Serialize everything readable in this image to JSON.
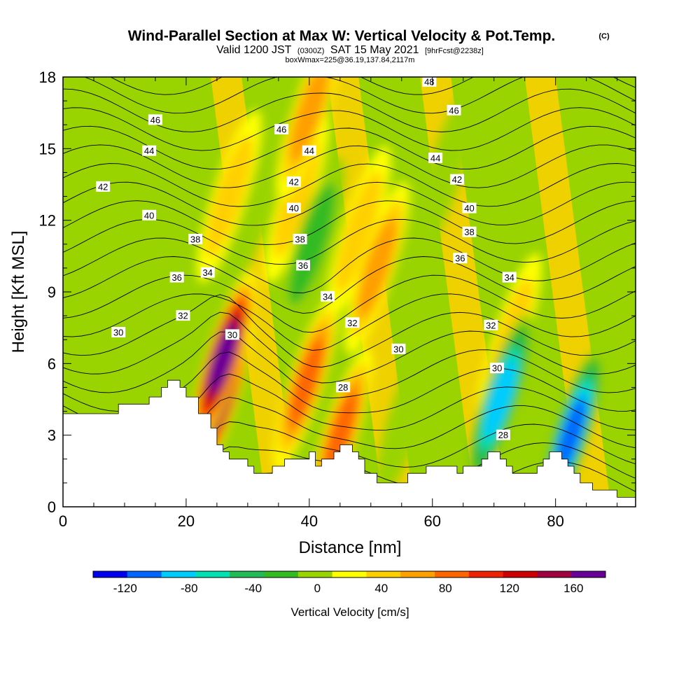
{
  "chart_data": {
    "type": "heatmap",
    "title": "Wind-Parallel Section at Max W: Vertical Velocity & Pot.Temp.",
    "title_mark": "(C)",
    "subtitle": {
      "valid": "Valid 1200 JST",
      "utc": "(0300Z)",
      "date": "SAT 15 May 2021",
      "fcst": "[9hrFcst@2238z]",
      "box": "boxWmax=225@36.19,137.84,2117m"
    },
    "xlabel": "Distance [nm]",
    "ylabel": "Height [Kft MSL]",
    "xlim": [
      0,
      93
    ],
    "ylim": [
      0,
      18
    ],
    "xticks": [
      0,
      20,
      40,
      60,
      80
    ],
    "yticks": [
      0,
      3,
      6,
      9,
      12,
      15,
      18
    ],
    "grid": false,
    "colorbar": {
      "label": "Vertical Velocity [cm/s]",
      "range": [
        -140,
        180
      ],
      "step": 20,
      "tick_values": [
        -120,
        -80,
        -40,
        0,
        40,
        80,
        120,
        160
      ],
      "tick_labels": [
        "-120",
        "-80",
        "-40",
        "0",
        "40",
        "80",
        "120",
        "160"
      ],
      "colors": [
        "#0000ee",
        "#0066ff",
        "#00ccff",
        "#00e0b0",
        "#22bb55",
        "#33bb22",
        "#99d400",
        "#ffff00",
        "#ffd000",
        "#ff9f00",
        "#ff6600",
        "#ee2200",
        "#cc0000",
        "#a00040",
        "#660099"
      ]
    },
    "velocity_features": [
      {
        "x": 26,
        "y": 6.2,
        "w": 160
      },
      {
        "x": 25.5,
        "y": 4.5,
        "w": 130
      },
      {
        "x": 39.5,
        "y": 5.2,
        "w": 80
      },
      {
        "x": 45,
        "y": 3.0,
        "w": 70
      },
      {
        "x": 48,
        "y": 11.5,
        "w": 40
      },
      {
        "x": 51,
        "y": 10.0,
        "w": 60
      },
      {
        "x": 40,
        "y": 16.5,
        "w": 60
      },
      {
        "x": 38,
        "y": 13.0,
        "w": 40
      },
      {
        "x": 72.5,
        "y": 7.0,
        "w": 40
      },
      {
        "x": 27,
        "y": 13.0,
        "w": 40
      },
      {
        "x": 40.5,
        "y": 11.0,
        "w": -40
      },
      {
        "x": 71,
        "y": 4.5,
        "w": -100
      },
      {
        "x": 82.5,
        "y": 3.0,
        "w": -120
      },
      {
        "x": 31,
        "y": 12.5,
        "w": -20
      },
      {
        "x": 62,
        "y": 14.0,
        "w": -10
      },
      {
        "x": 12,
        "y": 14.0,
        "w": -10
      },
      {
        "x": 56,
        "y": 4.0,
        "w": -20
      }
    ],
    "terrain": [
      [
        0,
        3.9
      ],
      [
        9,
        3.9
      ],
      [
        9,
        4.3
      ],
      [
        14,
        4.3
      ],
      [
        14,
        4.6
      ],
      [
        16,
        4.6
      ],
      [
        16,
        5.0
      ],
      [
        17,
        5.0
      ],
      [
        17,
        5.3
      ],
      [
        19,
        5.3
      ],
      [
        19,
        5.0
      ],
      [
        20,
        5.0
      ],
      [
        20,
        4.6
      ],
      [
        22,
        4.6
      ],
      [
        22,
        3.9
      ],
      [
        24,
        3.9
      ],
      [
        24,
        3.3
      ],
      [
        25,
        3.3
      ],
      [
        25,
        2.6
      ],
      [
        26,
        2.6
      ],
      [
        26,
        2.3
      ],
      [
        27,
        2.3
      ],
      [
        27,
        2.0
      ],
      [
        30,
        2.0
      ],
      [
        30,
        1.7
      ],
      [
        31,
        1.7
      ],
      [
        31,
        1.4
      ],
      [
        34,
        1.4
      ],
      [
        34,
        1.7
      ],
      [
        36,
        1.7
      ],
      [
        36,
        2.0
      ],
      [
        40,
        2.0
      ],
      [
        40,
        2.3
      ],
      [
        41,
        2.3
      ],
      [
        41,
        1.7
      ],
      [
        42,
        1.7
      ],
      [
        42,
        2.0
      ],
      [
        44,
        2.0
      ],
      [
        44,
        2.3
      ],
      [
        45,
        2.3
      ],
      [
        45,
        2.6
      ],
      [
        47,
        2.6
      ],
      [
        47,
        2.3
      ],
      [
        48,
        2.3
      ],
      [
        48,
        2.0
      ],
      [
        49,
        2.0
      ],
      [
        49,
        1.4
      ],
      [
        51,
        1.4
      ],
      [
        51,
        1.0
      ],
      [
        56,
        1.0
      ],
      [
        56,
        1.4
      ],
      [
        59,
        1.4
      ],
      [
        59,
        1.7
      ],
      [
        64,
        1.7
      ],
      [
        64,
        1.4
      ],
      [
        65,
        1.4
      ],
      [
        65,
        1.7
      ],
      [
        68,
        1.7
      ],
      [
        68,
        2.0
      ],
      [
        69,
        2.0
      ],
      [
        69,
        2.3
      ],
      [
        71,
        2.3
      ],
      [
        71,
        2.0
      ],
      [
        72,
        2.0
      ],
      [
        72,
        1.7
      ],
      [
        73,
        1.7
      ],
      [
        73,
        1.4
      ],
      [
        77,
        1.4
      ],
      [
        77,
        1.7
      ],
      [
        78,
        1.7
      ],
      [
        78,
        2.0
      ],
      [
        79,
        2.0
      ],
      [
        79,
        2.3
      ],
      [
        81,
        2.3
      ],
      [
        81,
        2.0
      ],
      [
        82,
        2.0
      ],
      [
        82,
        1.7
      ],
      [
        83,
        1.7
      ],
      [
        83,
        1.4
      ],
      [
        84,
        1.4
      ],
      [
        84,
        1.0
      ],
      [
        86,
        1.0
      ],
      [
        86,
        0.7
      ],
      [
        90,
        0.7
      ],
      [
        90,
        0.4
      ],
      [
        93,
        0.4
      ]
    ],
    "contour_labels": [
      {
        "x": 59.5,
        "y": 17.8,
        "label": "48"
      },
      {
        "x": 15,
        "y": 16.2,
        "label": "46"
      },
      {
        "x": 35.5,
        "y": 15.8,
        "label": "46"
      },
      {
        "x": 63.5,
        "y": 16.6,
        "label": "46"
      },
      {
        "x": 14,
        "y": 14.9,
        "label": "44"
      },
      {
        "x": 40,
        "y": 14.9,
        "label": "44"
      },
      {
        "x": 60.5,
        "y": 14.6,
        "label": "44"
      },
      {
        "x": 6.5,
        "y": 13.4,
        "label": "42"
      },
      {
        "x": 37.5,
        "y": 13.6,
        "label": "42"
      },
      {
        "x": 64,
        "y": 13.7,
        "label": "42"
      },
      {
        "x": 14,
        "y": 12.2,
        "label": "40"
      },
      {
        "x": 37.5,
        "y": 12.5,
        "label": "40"
      },
      {
        "x": 66,
        "y": 12.5,
        "label": "40"
      },
      {
        "x": 21.5,
        "y": 11.2,
        "label": "38"
      },
      {
        "x": 38.5,
        "y": 11.2,
        "label": "38"
      },
      {
        "x": 66,
        "y": 11.5,
        "label": "38"
      },
      {
        "x": 18.5,
        "y": 9.6,
        "label": "36"
      },
      {
        "x": 39,
        "y": 10.1,
        "label": "36"
      },
      {
        "x": 64.5,
        "y": 10.4,
        "label": "36"
      },
      {
        "x": 23.5,
        "y": 9.8,
        "label": "34"
      },
      {
        "x": 43,
        "y": 8.8,
        "label": "34"
      },
      {
        "x": 72.5,
        "y": 9.6,
        "label": "34"
      },
      {
        "x": 19.5,
        "y": 8.0,
        "label": "32"
      },
      {
        "x": 47,
        "y": 7.7,
        "label": "32"
      },
      {
        "x": 69.5,
        "y": 7.6,
        "label": "32"
      },
      {
        "x": 9,
        "y": 7.3,
        "label": "30"
      },
      {
        "x": 27.5,
        "y": 7.2,
        "label": "30"
      },
      {
        "x": 54.5,
        "y": 6.6,
        "label": "30"
      },
      {
        "x": 70.5,
        "y": 5.8,
        "label": "30"
      },
      {
        "x": 45.5,
        "y": 5.0,
        "label": "28"
      },
      {
        "x": 71.5,
        "y": 3.0,
        "label": "28"
      }
    ]
  }
}
